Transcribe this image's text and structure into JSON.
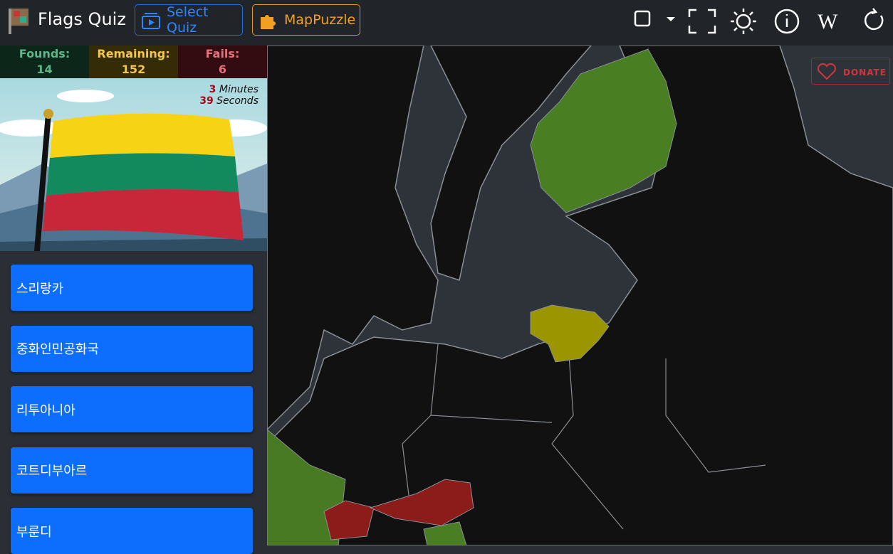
{
  "header": {
    "title": "Flags Quiz",
    "buttons": [
      "Select Quiz",
      "MapPuzzle"
    ]
  },
  "stats": [
    {
      "label": "Founds:",
      "value": 14
    },
    {
      "label": "Remaining:",
      "value": 152
    },
    {
      "label": "Fails:",
      "value": 6
    }
  ],
  "timer": {
    "minutes": 3,
    "minutes_label": "Minutes",
    "seconds": 39,
    "seconds_label": "Seconds"
  },
  "answers": [
    "스리랑카",
    "중화인민공화국",
    "리투아니아",
    "코트디부아르",
    "부룬디"
  ],
  "donate": "DONATE"
}
